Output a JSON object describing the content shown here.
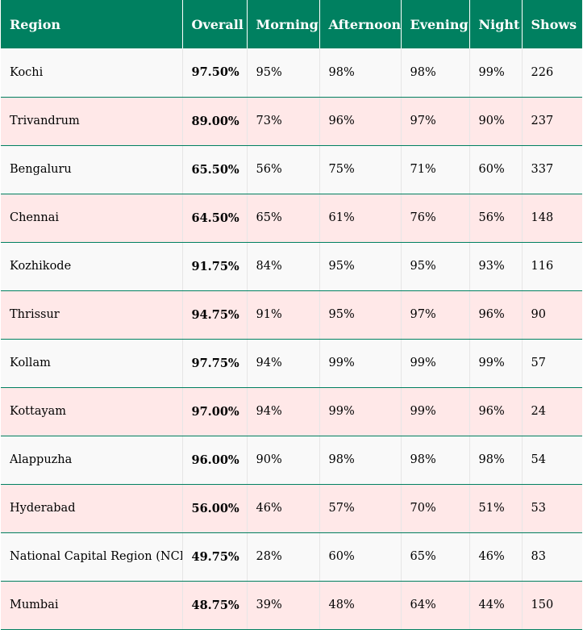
{
  "table": {
    "headers": [
      "Region",
      "Overall",
      "Morning",
      "Afternoon",
      "Evening",
      "Night",
      "Shows"
    ],
    "rows": [
      [
        "Kochi",
        "97.50%",
        "95%",
        "98%",
        "98%",
        "99%",
        "226"
      ],
      [
        "Trivandrum",
        "89.00%",
        "73%",
        "96%",
        "97%",
        "90%",
        "237"
      ],
      [
        "Bengaluru",
        "65.50%",
        "56%",
        "75%",
        "71%",
        "60%",
        "337"
      ],
      [
        "Chennai",
        "64.50%",
        "65%",
        "61%",
        "76%",
        "56%",
        "148"
      ],
      [
        "Kozhikode",
        "91.75%",
        "84%",
        "95%",
        "95%",
        "93%",
        "116"
      ],
      [
        "Thrissur",
        "94.75%",
        "91%",
        "95%",
        "97%",
        "96%",
        "90"
      ],
      [
        "Kollam",
        "97.75%",
        "94%",
        "99%",
        "99%",
        "99%",
        "57"
      ],
      [
        "Kottayam",
        "97.00%",
        "94%",
        "99%",
        "99%",
        "96%",
        "24"
      ],
      [
        "Alappuzha",
        "96.00%",
        "90%",
        "98%",
        "98%",
        "98%",
        "54"
      ],
      [
        "Hyderabad",
        "56.00%",
        "46%",
        "57%",
        "70%",
        "51%",
        "53"
      ],
      [
        "National Capital Region (NCR)",
        "49.75%",
        "28%",
        "60%",
        "65%",
        "46%",
        "83"
      ],
      [
        "Mumbai",
        "48.75%",
        "39%",
        "48%",
        "64%",
        "44%",
        "150"
      ]
    ]
  },
  "colors": {
    "header_bg": "#008060",
    "row_alt_bg": "#ffe8e8",
    "row_bg": "#f9f9f9",
    "row_border": "#008060"
  }
}
